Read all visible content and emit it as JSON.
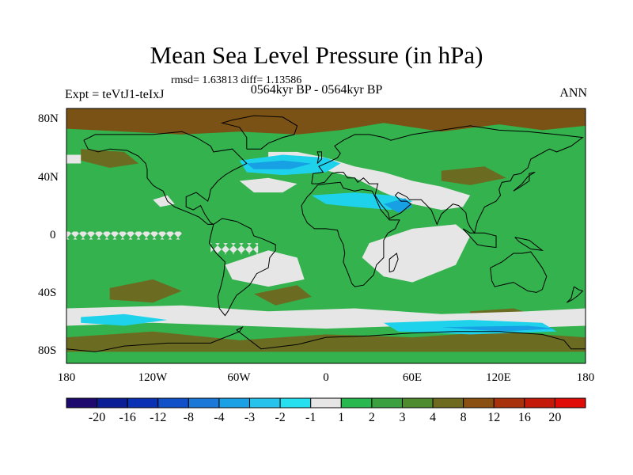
{
  "title": "Mean Sea Level Pressure (in hPa)",
  "stats": "rmsd= 1.63813 diff= 1.13586",
  "expt": "Expt = teVtJ1-teIxJ",
  "period": "0564kyr BP - 0564kyr BP",
  "season": "ANN",
  "lat_labels": [
    "80N",
    "40N",
    "0",
    "40S",
    "80S"
  ],
  "lon_labels": [
    "180",
    "120W",
    "60W",
    "0",
    "60E",
    "120E",
    "180"
  ],
  "colorbar": {
    "labels": [
      "-20",
      "-16",
      "-12",
      "-8",
      "-4",
      "-3",
      "-2",
      "-1",
      "1",
      "2",
      "3",
      "4",
      "8",
      "12",
      "16",
      "20"
    ],
    "colors": [
      "#1e0a6e",
      "#0c1e96",
      "#0a30b4",
      "#1050c8",
      "#1a78d8",
      "#1aa0e4",
      "#26c4ec",
      "#26e0f0",
      "#e6e6e6",
      "#28b850",
      "#3aa040",
      "#4e8a2e",
      "#6e6a1e",
      "#8a5012",
      "#a8320c",
      "#c41a0a",
      "#e00c08"
    ]
  },
  "colors": {
    "green": "#33b24d",
    "olive": "#6b6c22",
    "brown": "#7a5216",
    "white": "#e6e6e6",
    "cyan": "#1ed2ec",
    "blue": "#17a1e4",
    "coast": "#000000"
  }
}
